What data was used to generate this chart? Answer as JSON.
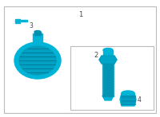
{
  "bg_color": "#ffffff",
  "outer_box_color": "#bbbbbb",
  "inner_box_color": "#bbbbbb",
  "part_color": "#00b4d8",
  "part_color_dark": "#0090b0",
  "part_color_shadow": "#007a96",
  "text_color": "#444444",
  "label_1": "1",
  "label_2": "2",
  "label_3": "3",
  "label_4": "4",
  "figsize": [
    2.0,
    1.47
  ],
  "dpi": 100
}
